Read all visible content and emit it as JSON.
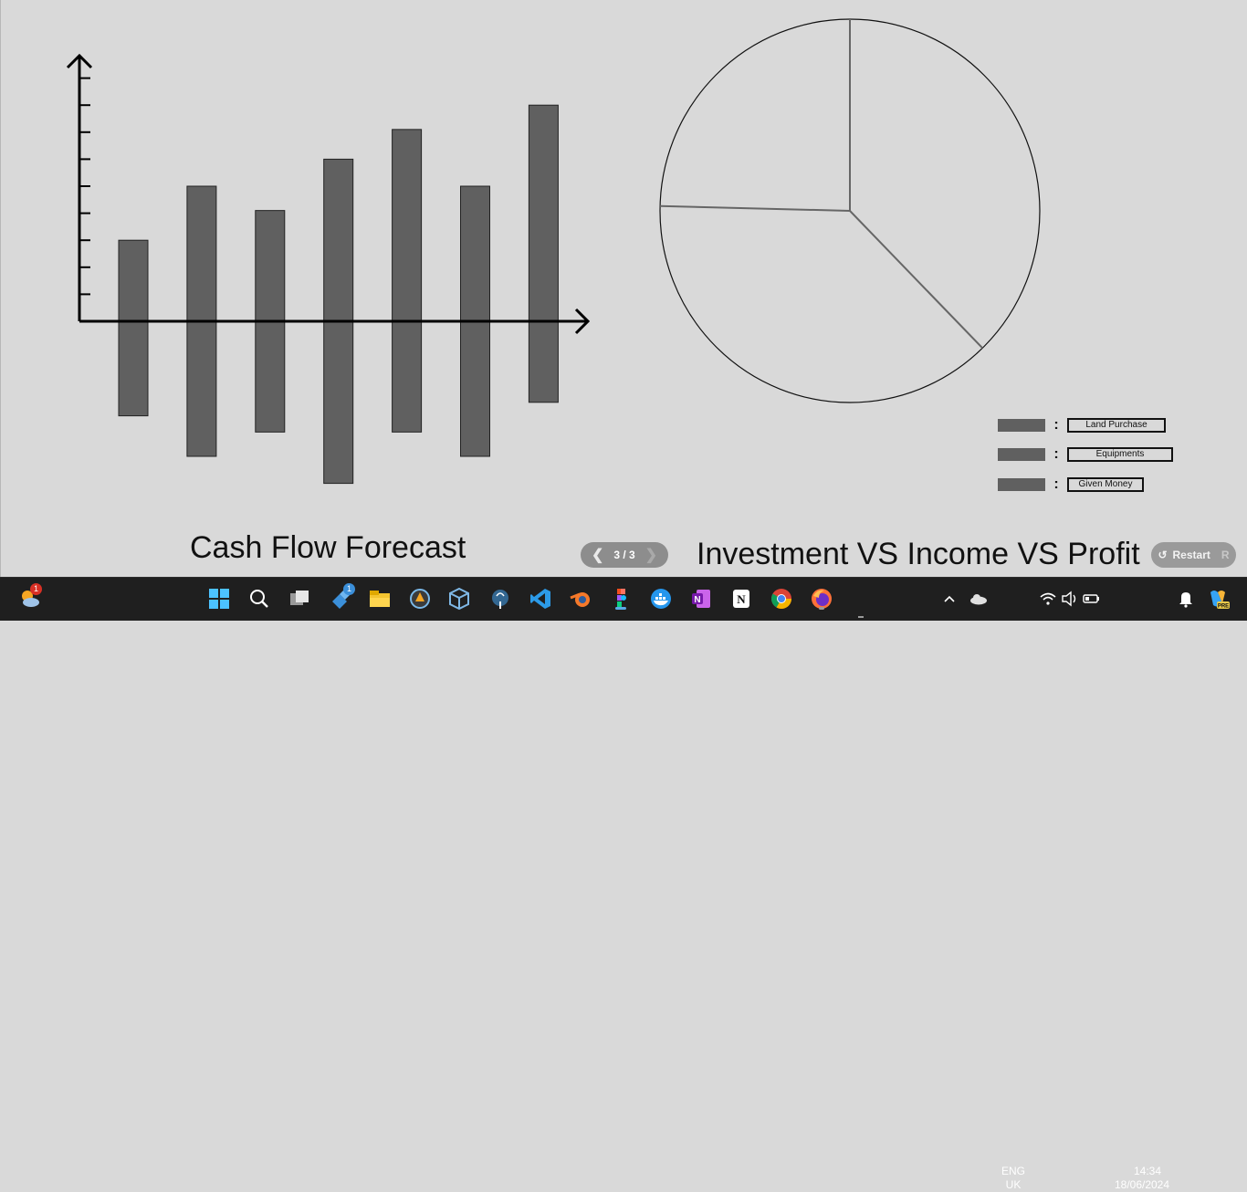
{
  "presentation": {
    "slide_indicator": "3 / 3",
    "restart_label": "Restart",
    "restart_key": "R"
  },
  "chart_data": [
    {
      "type": "bar",
      "title": "Cash Flow Forecast",
      "categories": [
        "",
        "",
        "",
        "",
        "",
        "",
        ""
      ],
      "series": [
        {
          "values": [
            3,
            5,
            4.1,
            6,
            7.1,
            5,
            8
          ]
        },
        {
          "values": [
            -3.5,
            -5,
            -4.1,
            -6,
            -4.1,
            -5,
            -3
          ]
        }
      ],
      "ylim": [
        -6,
        9
      ],
      "y_ticks": [
        1,
        2,
        3,
        4,
        5,
        6,
        7,
        8,
        9
      ],
      "bar_color": "#606060",
      "xlabel": "",
      "ylabel": ""
    },
    {
      "type": "pie",
      "title": "Investment VS Income VS Profit",
      "labels": [
        "Land Purchase",
        "Equipments",
        "Given Money"
      ],
      "values": [
        37.7,
        37.7,
        24.6
      ],
      "colors": [
        "#d9d9d9",
        "#d9d9d9",
        "#d9d9d9"
      ],
      "legend_swatch_color": "#606060"
    }
  ],
  "taskbar": {
    "apps": [
      {
        "name": "widgets-weather",
        "badge": "1"
      },
      {
        "name": "start"
      },
      {
        "name": "search"
      },
      {
        "name": "task-view"
      },
      {
        "name": "tools-app",
        "badge": "1"
      },
      {
        "name": "file-explorer"
      },
      {
        "name": "inkscape"
      },
      {
        "name": "virtualbox"
      },
      {
        "name": "postgresql"
      },
      {
        "name": "vscode"
      },
      {
        "name": "blender"
      },
      {
        "name": "figma"
      },
      {
        "name": "docker"
      },
      {
        "name": "onenote"
      },
      {
        "name": "notion"
      },
      {
        "name": "chrome"
      },
      {
        "name": "firefox"
      }
    ],
    "language_top": "ENG",
    "language_bottom": "UK",
    "time": "14:34",
    "date": "18/06/2024"
  }
}
